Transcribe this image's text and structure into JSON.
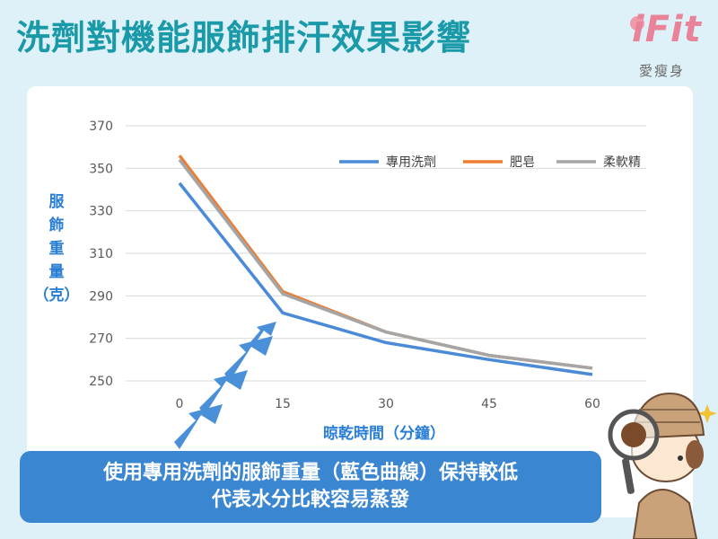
{
  "title": "洗劑對機能服飾排汗效果影響",
  "logo": {
    "brand": "iFit",
    "subtitle": "愛瘦身"
  },
  "caption": {
    "line1": "使用專用洗劑的服飾重量（藍色曲線）保持較低",
    "line2": "代表水分比較容易蒸發"
  },
  "colors": {
    "title": "#1a9aa8",
    "background": "#dff1f8",
    "caption_bg": "#3b86d1",
    "arrows": "#4a90d9"
  },
  "chart_data": {
    "type": "line",
    "title": "",
    "xlabel": "晾乾時間（分鐘）",
    "ylabel": "服飾重量（克）",
    "x": [
      0,
      15,
      30,
      45,
      60
    ],
    "xticks": [
      "0",
      "15",
      "30",
      "45",
      "60"
    ],
    "ylim": [
      250,
      370
    ],
    "yticks": [
      250,
      270,
      290,
      310,
      330,
      350,
      370
    ],
    "grid": true,
    "legend_position": "top-right",
    "series": [
      {
        "name": "專用洗劑",
        "color": "#4a8ad6",
        "values": [
          343,
          282,
          268,
          260,
          253
        ]
      },
      {
        "name": "肥皂",
        "color": "#ee7d31",
        "values": [
          356,
          292,
          273,
          262,
          256
        ]
      },
      {
        "name": "柔軟精",
        "color": "#a5a5a5",
        "values": [
          354,
          291,
          273,
          262,
          256
        ]
      }
    ]
  }
}
